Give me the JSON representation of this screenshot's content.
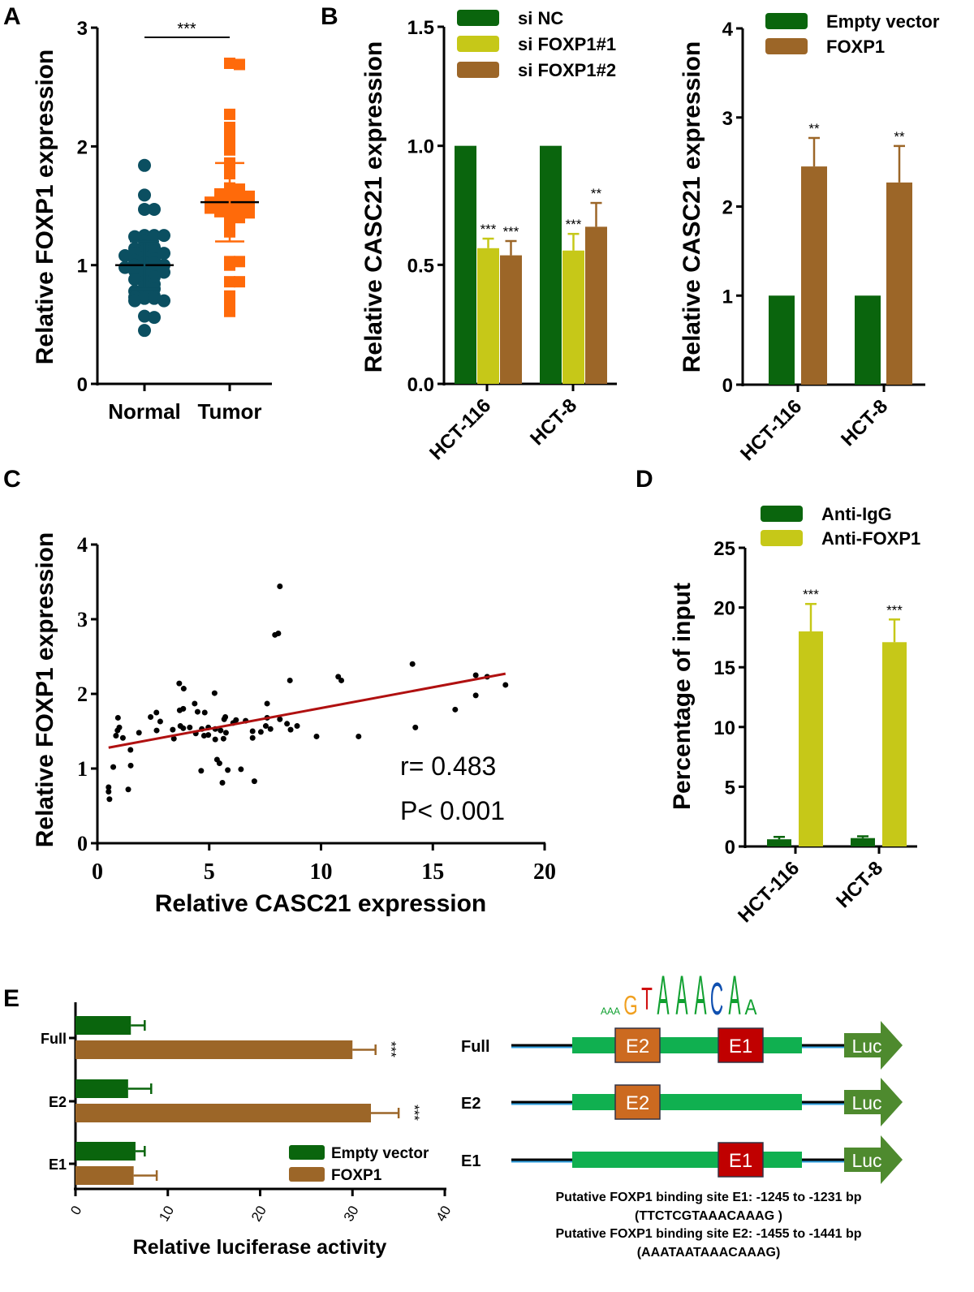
{
  "panel_letters": {
    "a": "A",
    "b": "B",
    "c": "C",
    "d": "D",
    "e": "E"
  },
  "colors": {
    "normal": "#0b4f61",
    "tumor": "#ff6a0a",
    "dark_green": "#0a650d",
    "yellow_green": "#c6c818",
    "brown": "#9c6628",
    "regression": "#b01010",
    "e2_box": "#cc6a20",
    "e1_box": "#c00000",
    "promoter": "#10b050",
    "luc": "#4e8a2e"
  },
  "chart_data": [
    {
      "id": "A",
      "type": "scatter",
      "ylabel": "Relative FOXP1 expression",
      "ylim": [
        0,
        3
      ],
      "yticks": [
        "0",
        "1",
        "2",
        "3"
      ],
      "categories": [
        "Normal",
        "Tumor"
      ],
      "significance": "***",
      "series": [
        {
          "name": "Normal",
          "mean": 1.0,
          "sd": 0.2,
          "values": [
            1.84,
            1.59,
            1.47,
            1.47,
            1.25,
            1.25,
            1.24,
            1.25,
            1.2,
            1.16,
            1.15,
            1.14,
            1.12,
            1.12,
            1.1,
            1.1,
            1.08,
            1.07,
            1.05,
            1.04,
            1.02,
            1.02,
            1.0,
            1.0,
            0.98,
            0.97,
            0.96,
            0.95,
            0.94,
            0.92,
            0.9,
            0.88,
            0.86,
            0.84,
            0.82,
            0.8,
            0.78,
            0.75,
            0.74,
            0.73,
            0.72,
            0.72,
            0.7,
            0.7,
            0.57,
            0.56,
            0.45
          ]
        },
        {
          "name": "Tumor",
          "mean": 1.53,
          "sd": 0.33,
          "values": [
            2.7,
            2.69,
            2.27,
            2.16,
            2.07,
            1.98,
            1.97,
            1.86,
            1.78,
            1.77,
            1.65,
            1.64,
            1.62,
            1.61,
            1.6,
            1.58,
            1.57,
            1.56,
            1.55,
            1.54,
            1.53,
            1.52,
            1.51,
            1.5,
            1.49,
            1.48,
            1.47,
            1.46,
            1.45,
            1.44,
            1.42,
            1.4,
            1.37,
            1.28,
            1.03,
            1.03,
            1.0,
            0.86,
            0.86,
            0.74,
            0.68,
            0.61
          ]
        }
      ]
    },
    {
      "id": "B-left",
      "type": "bar",
      "ylabel": "Relative CASC21 expression",
      "ylim": [
        0,
        1.5
      ],
      "yticks": [
        "0.0",
        "0.5",
        "1.0",
        "1.5"
      ],
      "categories": [
        "HCT-116",
        "HCT-8"
      ],
      "series": [
        {
          "name": "si NC",
          "values": [
            1.0,
            1.0
          ],
          "err": [
            0,
            0
          ],
          "sig": [
            "",
            ""
          ]
        },
        {
          "name": "si FOXP1#1",
          "values": [
            0.57,
            0.56
          ],
          "err": [
            0.04,
            0.07
          ],
          "sig": [
            "***",
            "***"
          ]
        },
        {
          "name": "si FOXP1#2",
          "values": [
            0.54,
            0.66
          ],
          "err": [
            0.06,
            0.1
          ],
          "sig": [
            "***",
            "**"
          ]
        }
      ]
    },
    {
      "id": "B-right",
      "type": "bar",
      "ylabel": "Relative CASC21  expression",
      "ylim": [
        0,
        4
      ],
      "yticks": [
        "0",
        "1",
        "2",
        "3",
        "4"
      ],
      "categories": [
        "HCT-116",
        "HCT-8"
      ],
      "series": [
        {
          "name": "Empty vector",
          "values": [
            1.0,
            1.0
          ],
          "err": [
            0,
            0
          ],
          "sig": [
            "",
            ""
          ]
        },
        {
          "name": "FOXP1",
          "values": [
            2.45,
            2.27
          ],
          "err": [
            0.32,
            0.41
          ],
          "sig": [
            "**",
            "**"
          ]
        }
      ]
    },
    {
      "id": "C",
      "type": "scatter",
      "xlabel": "Relative CASC21 expression",
      "ylabel": "Relative FOXP1 expression",
      "xlim": [
        0,
        20
      ],
      "ylim": [
        0,
        4
      ],
      "xticks": [
        "0",
        "5",
        "10",
        "15",
        "20"
      ],
      "yticks": [
        "0",
        "1",
        "2",
        "3",
        "4"
      ],
      "annotations": [
        "r= 0.483",
        "P< 0.001"
      ],
      "regression": {
        "x": [
          0.5,
          18.25
        ],
        "y": [
          1.28,
          2.27
        ]
      },
      "points": [
        [
          0.5,
          0.75
        ],
        [
          0.5,
          0.69
        ],
        [
          0.54,
          0.59
        ],
        [
          0.71,
          1.02
        ],
        [
          0.83,
          1.44
        ],
        [
          0.9,
          1.51
        ],
        [
          0.98,
          1.55
        ],
        [
          0.92,
          1.68
        ],
        [
          1.14,
          1.41
        ],
        [
          1.38,
          0.72
        ],
        [
          1.48,
          1.25
        ],
        [
          1.49,
          1.04
        ],
        [
          1.86,
          1.48
        ],
        [
          2.38,
          1.69
        ],
        [
          2.64,
          1.75
        ],
        [
          2.65,
          1.51
        ],
        [
          2.81,
          1.63
        ],
        [
          3.37,
          1.52
        ],
        [
          3.42,
          1.4
        ],
        [
          3.66,
          2.14
        ],
        [
          3.86,
          2.07
        ],
        [
          3.68,
          1.78
        ],
        [
          3.84,
          1.8
        ],
        [
          3.71,
          1.57
        ],
        [
          3.84,
          1.54
        ],
        [
          4.13,
          1.55
        ],
        [
          4.35,
          1.87
        ],
        [
          4.4,
          1.47
        ],
        [
          4.48,
          1.76
        ],
        [
          4.64,
          0.97
        ],
        [
          4.67,
          1.53
        ],
        [
          4.77,
          1.44
        ],
        [
          4.8,
          1.75
        ],
        [
          4.96,
          1.55
        ],
        [
          4.96,
          1.45
        ],
        [
          5.24,
          2.01
        ],
        [
          5.27,
          1.53
        ],
        [
          5.27,
          1.39
        ],
        [
          5.35,
          1.12
        ],
        [
          5.46,
          1.07
        ],
        [
          5.51,
          1.51
        ],
        [
          5.59,
          0.81
        ],
        [
          5.64,
          1.4
        ],
        [
          5.67,
          1.66
        ],
        [
          5.72,
          1.69
        ],
        [
          5.75,
          1.48
        ],
        [
          5.83,
          0.98
        ],
        [
          6.07,
          1.61
        ],
        [
          6.2,
          1.65
        ],
        [
          6.42,
          0.99
        ],
        [
          6.63,
          1.64
        ],
        [
          6.94,
          1.5
        ],
        [
          6.94,
          1.41
        ],
        [
          7.02,
          0.83
        ],
        [
          7.31,
          1.49
        ],
        [
          7.53,
          1.57
        ],
        [
          7.59,
          1.87
        ],
        [
          7.59,
          1.68
        ],
        [
          7.74,
          1.53
        ],
        [
          7.94,
          2.79
        ],
        [
          8.09,
          2.81
        ],
        [
          8.16,
          3.44
        ],
        [
          8.16,
          1.66
        ],
        [
          8.48,
          1.6
        ],
        [
          8.61,
          2.18
        ],
        [
          8.64,
          1.52
        ],
        [
          8.93,
          1.57
        ],
        [
          9.8,
          1.43
        ],
        [
          10.77,
          2.23
        ],
        [
          10.91,
          2.18
        ],
        [
          11.68,
          1.43
        ],
        [
          14.09,
          2.4
        ],
        [
          14.22,
          1.55
        ],
        [
          16.0,
          1.79
        ],
        [
          16.92,
          1.98
        ],
        [
          16.92,
          2.25
        ],
        [
          17.43,
          2.23
        ],
        [
          18.25,
          2.12
        ]
      ]
    },
    {
      "id": "D",
      "type": "bar",
      "ylabel": "Percentage of input",
      "ylim": [
        0,
        25
      ],
      "yticks": [
        "0",
        "5",
        "10",
        "15",
        "20",
        "25"
      ],
      "categories": [
        "HCT-116",
        "HCT-8"
      ],
      "series": [
        {
          "name": "Anti-IgG",
          "values": [
            0.6,
            0.7
          ],
          "err": [
            0.2,
            0.15
          ],
          "sig": [
            "",
            ""
          ]
        },
        {
          "name": "Anti-FOXP1",
          "values": [
            18.0,
            17.1
          ],
          "err": [
            2.3,
            1.9
          ],
          "sig": [
            "***",
            "***"
          ]
        }
      ]
    },
    {
      "id": "E",
      "type": "bar",
      "orientation": "horizontal",
      "xlabel": "Relative luciferase activity",
      "xlim": [
        0,
        40
      ],
      "xticks": [
        "0",
        "10",
        "20",
        "30",
        "40"
      ],
      "categories": [
        "Full",
        "E2",
        "E1"
      ],
      "series": [
        {
          "name": "Empty vector",
          "values": [
            6.0,
            5.7,
            6.5
          ],
          "err": [
            1.5,
            2.5,
            1.0
          ],
          "sig": [
            "",
            "",
            ""
          ]
        },
        {
          "name": "FOXP1",
          "values": [
            30.0,
            32.0,
            6.3
          ],
          "err": [
            2.5,
            3.0,
            2.5
          ],
          "sig": [
            "***",
            "***",
            ""
          ]
        }
      ]
    }
  ],
  "diagram": {
    "rows": [
      {
        "label": "Full",
        "boxes": [
          "E2",
          "E1"
        ],
        "reporter": "Luc"
      },
      {
        "label": "E2",
        "boxes": [
          "E2"
        ],
        "reporter": "Luc"
      },
      {
        "label": "E1",
        "boxes": [
          "E1"
        ],
        "reporter": "Luc"
      }
    ],
    "motif": "GTAAACA",
    "notes": [
      "Putative FOXP1 binding site E1: -1245 to -1231 bp",
      "(TTCTCGTAAACAAAG )",
      "Putative FOXP1 binding site E2: -1455 to -1441 bp",
      "(AAATAATAAACAAAG)"
    ]
  }
}
